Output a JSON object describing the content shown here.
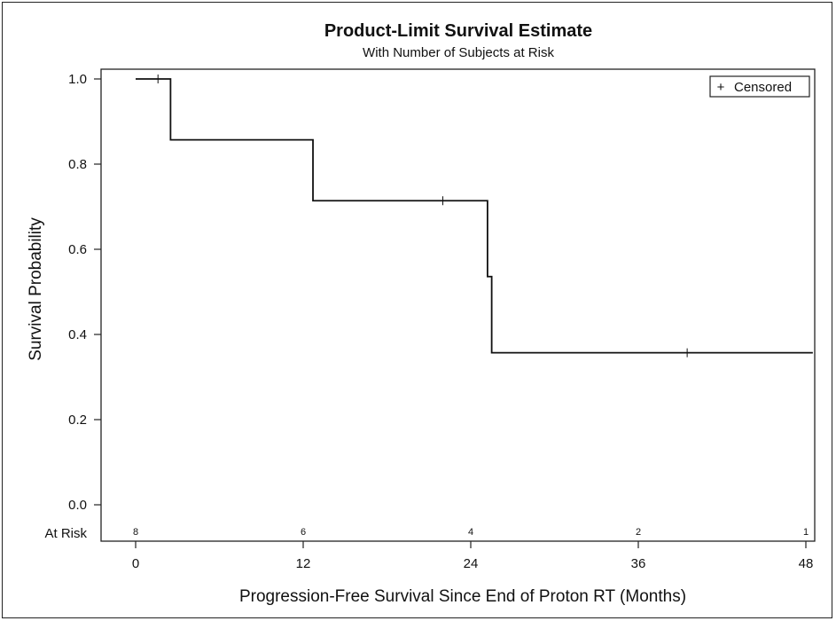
{
  "chart_data": {
    "type": "line",
    "title": "Product-Limit Survival Estimate",
    "subtitle": "With Number of Subjects at Risk",
    "xlabel": "Progression-Free Survival Since End of Proton RT (Months)",
    "ylabel": "Survival Probability",
    "xlim": [
      0,
      48
    ],
    "ylim": [
      0,
      1.0
    ],
    "x_ticks": [
      "0",
      "12",
      "24",
      "36",
      "48"
    ],
    "y_ticks": [
      "0.0",
      "0.2",
      "0.4",
      "0.6",
      "0.8",
      "1.0"
    ],
    "series": [
      {
        "x": [
          0,
          2.5,
          2.5,
          12.7,
          12.7,
          25.2,
          25.2,
          25.5,
          25.5,
          48.5
        ],
        "y": [
          1.0,
          1.0,
          0.857,
          0.857,
          0.714,
          0.714,
          0.536,
          0.536,
          0.357,
          0.357
        ]
      }
    ],
    "censored": [
      {
        "x": 1.6,
        "y": 1.0
      },
      {
        "x": 22.0,
        "y": 0.714
      },
      {
        "x": 39.5,
        "y": 0.357
      }
    ],
    "legend": {
      "label": "Censored",
      "marker": "+",
      "position": "top-right"
    },
    "at_risk": {
      "label": "At Risk",
      "x": [
        0,
        12,
        24,
        36,
        48
      ],
      "counts": [
        "8",
        "6",
        "4",
        "2",
        "1"
      ]
    },
    "grid": false
  },
  "colors": {
    "line": "#111111",
    "frame": "#222222",
    "background": "#ffffff"
  }
}
